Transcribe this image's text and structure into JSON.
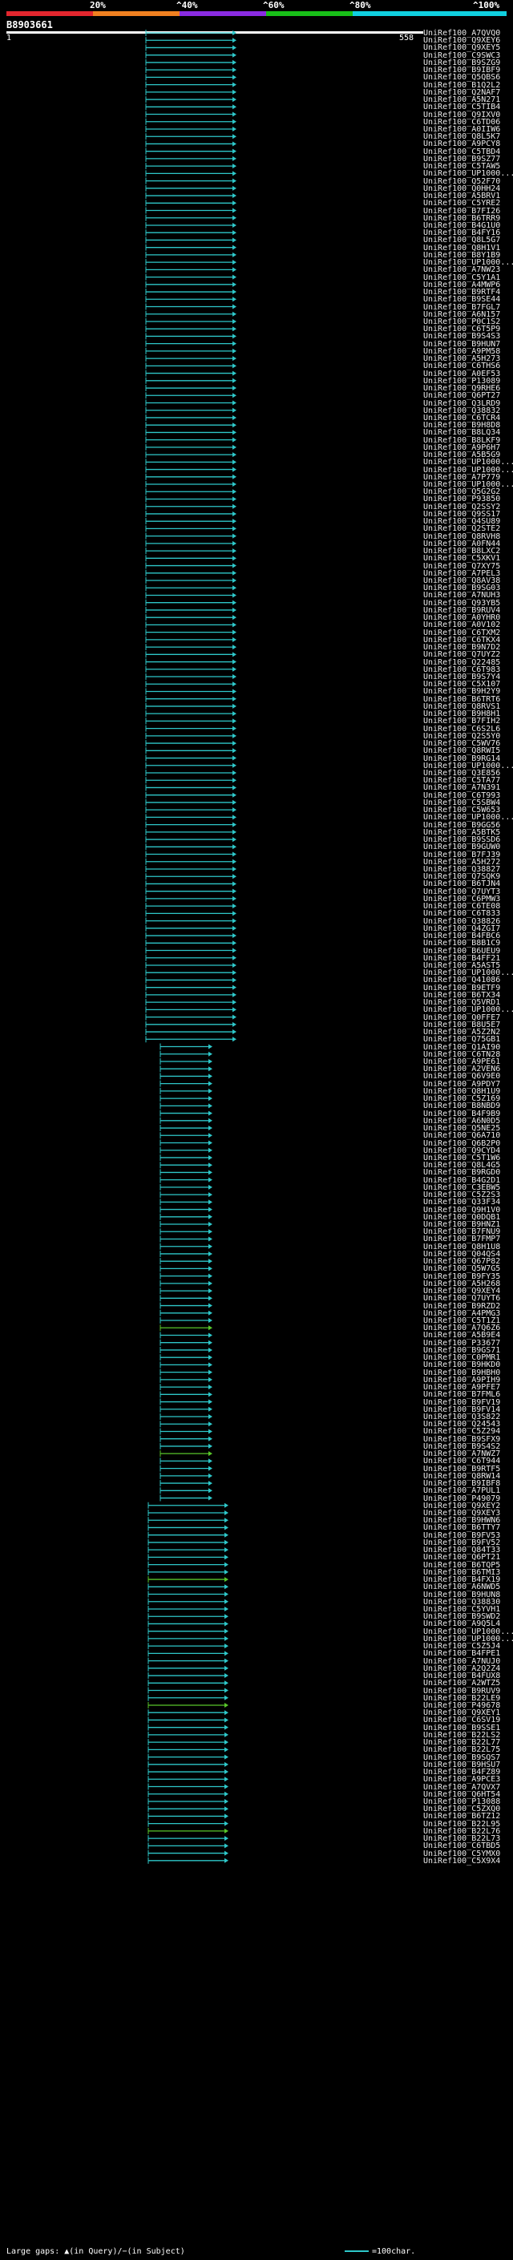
{
  "header": {
    "scale_ticks": [
      "20%",
      "^40%",
      "^60%",
      "^80%",
      "^100%"
    ],
    "scale_colors": [
      "#e3262e",
      "#f08020",
      "#8a2be2",
      "#18c018",
      "#10d0e0"
    ],
    "query_id": "B8903661",
    "pos_start": "1",
    "pos_end": "558"
  },
  "colors": {
    "hit": "#2ec7c9",
    "alt_hit": "#58c52a",
    "background": "#000000"
  },
  "hits": [
    "UniRef100_A7QVQ0",
    "UniRef100_Q9XEY6",
    "UniRef100_Q9XEY5",
    "UniRef100_C9SWC3",
    "UniRef100_B9SZG9",
    "UniRef100_B9IBF9",
    "UniRef100_Q5QBS6",
    "UniRef100_B1Q2L2",
    "UniRef100_Q2NAF7",
    "UniRef100_A5N271",
    "UniRef100_C5TIB4",
    "UniRef100_Q9IXV0",
    "UniRef100_C6TD06",
    "UniRef100_A0IIW6",
    "UniRef100_Q8L5K7",
    "UniRef100_A9PCY8",
    "UniRef100_C5TBD4",
    "UniRef100_B9SZ77",
    "UniRef100_C5TAW5",
    "UniRef100_UP1000...",
    "UniRef100_Q52F70",
    "UniRef100_Q0HH24",
    "UniRef100_A5BRV1",
    "UniRef100_C5YRE2",
    "UniRef100_B7FI26",
    "UniRef100_B6TRR9",
    "UniRef100_B4G1U0",
    "UniRef100_B4FY16",
    "UniRef100_Q8L5G7",
    "UniRef100_Q8H1V1",
    "UniRef100_B8Y1B9",
    "UniRef100_UP1000...",
    "UniRef100_A7NW23",
    "UniRef100_C5Y1A1",
    "UniRef100_A4MWP6",
    "UniRef100_B9RTF4",
    "UniRef100_B9SE44",
    "UniRef100_B7FGL7",
    "UniRef100_A6N157",
    "UniRef100_P0C1S2",
    "UniRef100_C6T5P9",
    "UniRef100_B9S4S3",
    "UniRef100_B9HUN7",
    "UniRef100_A9PM58",
    "UniRef100_A5H273",
    "UniRef100_C6THS6",
    "UniRef100_A0EF53",
    "UniRef100_P13089",
    "UniRef100_Q9RHE6",
    "UniRef100_Q6PT27",
    "UniRef100_Q3LRD9",
    "UniRef100_Q38832",
    "UniRef100_C6TCR4",
    "UniRef100_B9H8D8",
    "UniRef100_B8LQ34",
    "UniRef100_B8LKF9",
    "UniRef100_A9P6H7",
    "UniRef100_A5B5G9",
    "UniRef100_UP1000...",
    "UniRef100_UP1000...",
    "UniRef100_A7P779",
    "UniRef100_UP1000...",
    "UniRef100_Q5G2G2",
    "UniRef100_P93850",
    "UniRef100_Q2SSY2",
    "UniRef100_Q9SS17",
    "UniRef100_Q4SU89",
    "UniRef100_Q2STE2",
    "UniRef100_Q8RVH8",
    "UniRef100_A0FN44",
    "UniRef100_B8LXC2",
    "UniRef100_C5XKV1",
    "UniRef100_Q7XY75",
    "UniRef100_A7PEL3",
    "UniRef100_Q8AV38",
    "UniRef100_B9SG03",
    "UniRef100_A7NUH3",
    "UniRef100_Q93YB5",
    "UniRef100_B9RUV4",
    "UniRef100_A0YHR0",
    "UniRef100_A0V102",
    "UniRef100_C6TXM2",
    "UniRef100_C6TKX4",
    "UniRef100_B9N7D2",
    "UniRef100_Q7UYZ2",
    "UniRef100_Q22485",
    "UniRef100_C6T983",
    "UniRef100_B9S7Y4",
    "UniRef100_C5X107",
    "UniRef100_B9H2Y9",
    "UniRef100_B6TRT6",
    "UniRef100_Q8RVS1",
    "UniRef100_B9H8H1",
    "UniRef100_B7FIH2",
    "UniRef100_C6S2L6",
    "UniRef100_Q2S5Y0",
    "UniRef100_C5WV76",
    "UniRef100_Q8RWI5",
    "UniRef100_B9RG14",
    "UniRef100_UP1000...",
    "UniRef100_Q3E856",
    "UniRef100_C5TA77",
    "UniRef100_A7N391",
    "UniRef100_C6T993",
    "UniRef100_C5SBW4",
    "UniRef100_C5W653",
    "UniRef100_UP1000...",
    "UniRef100_B9GG56",
    "UniRef100_A5BTK5",
    "UniRef100_B9SSD6",
    "UniRef100_B9GUW0",
    "UniRef100_B7FJ39",
    "UniRef100_A5H272",
    "UniRef100_Q38827",
    "UniRef100_Q7SQK9",
    "UniRef100_B6TJN4",
    "UniRef100_Q7UYT3",
    "UniRef100_C6PMW3",
    "UniRef100_C6TE08",
    "UniRef100_C6T833",
    "UniRef100_Q38826",
    "UniRef100_Q4ZGI7",
    "UniRef100_B4FBC6",
    "UniRef100_B8B1C9",
    "UniRef100_B6UEU9",
    "UniRef100_B4FF21",
    "UniRef100_A5AST5",
    "UniRef100_UP1000...",
    "UniRef100_Q41086",
    "UniRef100_B9ETF9",
    "UniRef100_B6TX34",
    "UniRef100_Q5VRD1",
    "UniRef100_UP1000...",
    "UniRef100_Q0FFE7",
    "UniRef100_B8U5E7",
    "UniRef100_A5Z2N2",
    "UniRef100_Q75GB1",
    "UniRef100_Q1AI90",
    "UniRef100_C6TN28",
    "UniRef100_A9PE61",
    "UniRef100_A2VEN6",
    "UniRef100_Q6V9E0",
    "UniRef100_A9PDY7",
    "UniRef100_Q8H1U9",
    "UniRef100_C5Z169",
    "UniRef100_B8NBD9",
    "UniRef100_B4F9B9",
    "UniRef100_A6N0D5",
    "UniRef100_Q5NE25",
    "UniRef100_Q6A710",
    "UniRef100_Q6B2P0",
    "UniRef100_Q9CYD4",
    "UniRef100_C5T1W6",
    "UniRef100_Q8L4G5",
    "UniRef100_B9RGD0",
    "UniRef100_B4G2D1",
    "UniRef100_C3EBW5",
    "UniRef100_C5Z2S3",
    "UniRef100_Q33F34",
    "UniRef100_Q9H1V0",
    "UniRef100_Q0DQB1",
    "UniRef100_B9HNZ1",
    "UniRef100_B7FNU9",
    "UniRef100_B7FMP7",
    "UniRef100_Q8H1U8",
    "UniRef100_Q04QS4",
    "UniRef100_Q67P82",
    "UniRef100_Q5W7G5",
    "UniRef100_B9FY35",
    "UniRef100_A5H268",
    "UniRef100_Q9XEY4",
    "UniRef100_Q7UYT6",
    "UniRef100_B9RZD2",
    "UniRef100_A4PMG3",
    "UniRef100_C5T1Z1",
    "UniRef100_A7Q6Z6",
    "UniRef100_A5B9E4",
    "UniRef100_P33677",
    "UniRef100_B9GS71",
    "UniRef100_C0PMR1",
    "UniRef100_B9HKD0",
    "UniRef100_B9HBH0",
    "UniRef100_A9PIH9",
    "UniRef100_A9PFE7",
    "UniRef100_B7FML6",
    "UniRef100_B9FV19",
    "UniRef100_B9FV14",
    "UniRef100_Q3S822",
    "UniRef100_Q24543",
    "UniRef100_C5Z294",
    "UniRef100_B9SFX9",
    "UniRef100_B9S4S2",
    "UniRef100_A7NWZ7",
    "UniRef100_C6T944",
    "UniRef100_B9RTF5",
    "UniRef100_Q8RW14",
    "UniRef100_B9IBF8",
    "UniRef100_A7PUL1",
    "UniRef100_P49079",
    "UniRef100_Q9XEY2",
    "UniRef100_Q9XEY3",
    "UniRef100_B9HWN6",
    "UniRef100_B6TTY7",
    "UniRef100_B9FV53",
    "UniRef100_B9FV52",
    "UniRef100_Q84T33",
    "UniRef100_Q6PT21",
    "UniRef100_B6TQP5",
    "UniRef100_B6TMI3",
    "UniRef100_B4FX19",
    "UniRef100_A6NWD5",
    "UniRef100_B9HUN8",
    "UniRef100_Q38830",
    "UniRef100_C5YVH1",
    "UniRef100_B9SWD2",
    "UniRef100_A9Q5L4",
    "UniRef100_UP1000...",
    "UniRef100_UP1000...",
    "UniRef100_C5Z5J4",
    "UniRef100_B4FPE1",
    "UniRef100_A7NUJ0",
    "UniRef100_A2Q2Z4",
    "UniRef100_B4FUX8",
    "UniRef100_A2WTZ5",
    "UniRef100_B9RUV9",
    "UniRef100_B22LE9",
    "UniRef100_P49678",
    "UniRef100_Q9XEY1",
    "UniRef100_C6SV19",
    "UniRef100_B9SSE1",
    "UniRef100_B22LS2",
    "UniRef100_B22L77",
    "UniRef100_B22L75",
    "UniRef100_B9SQS7",
    "UniRef100_B9HSU7",
    "UniRef100_B4FZ89",
    "UniRef100_A9PCE3",
    "UniRef100_A7QVX7",
    "UniRef100_Q6HT54",
    "UniRef100_P13088",
    "UniRef100_C5ZXQ0",
    "UniRef100_B6TZ12",
    "UniRef100_B22L95",
    "UniRef100_B22L76",
    "UniRef100_B22L73",
    "UniRef100_C6TBD5",
    "UniRef100_C5YMX0",
    "UniRef100_C5X9X4"
  ],
  "footer": {
    "note": "Large gaps: ▲(in Query)/−(in Subject)",
    "legend": "=100char."
  }
}
